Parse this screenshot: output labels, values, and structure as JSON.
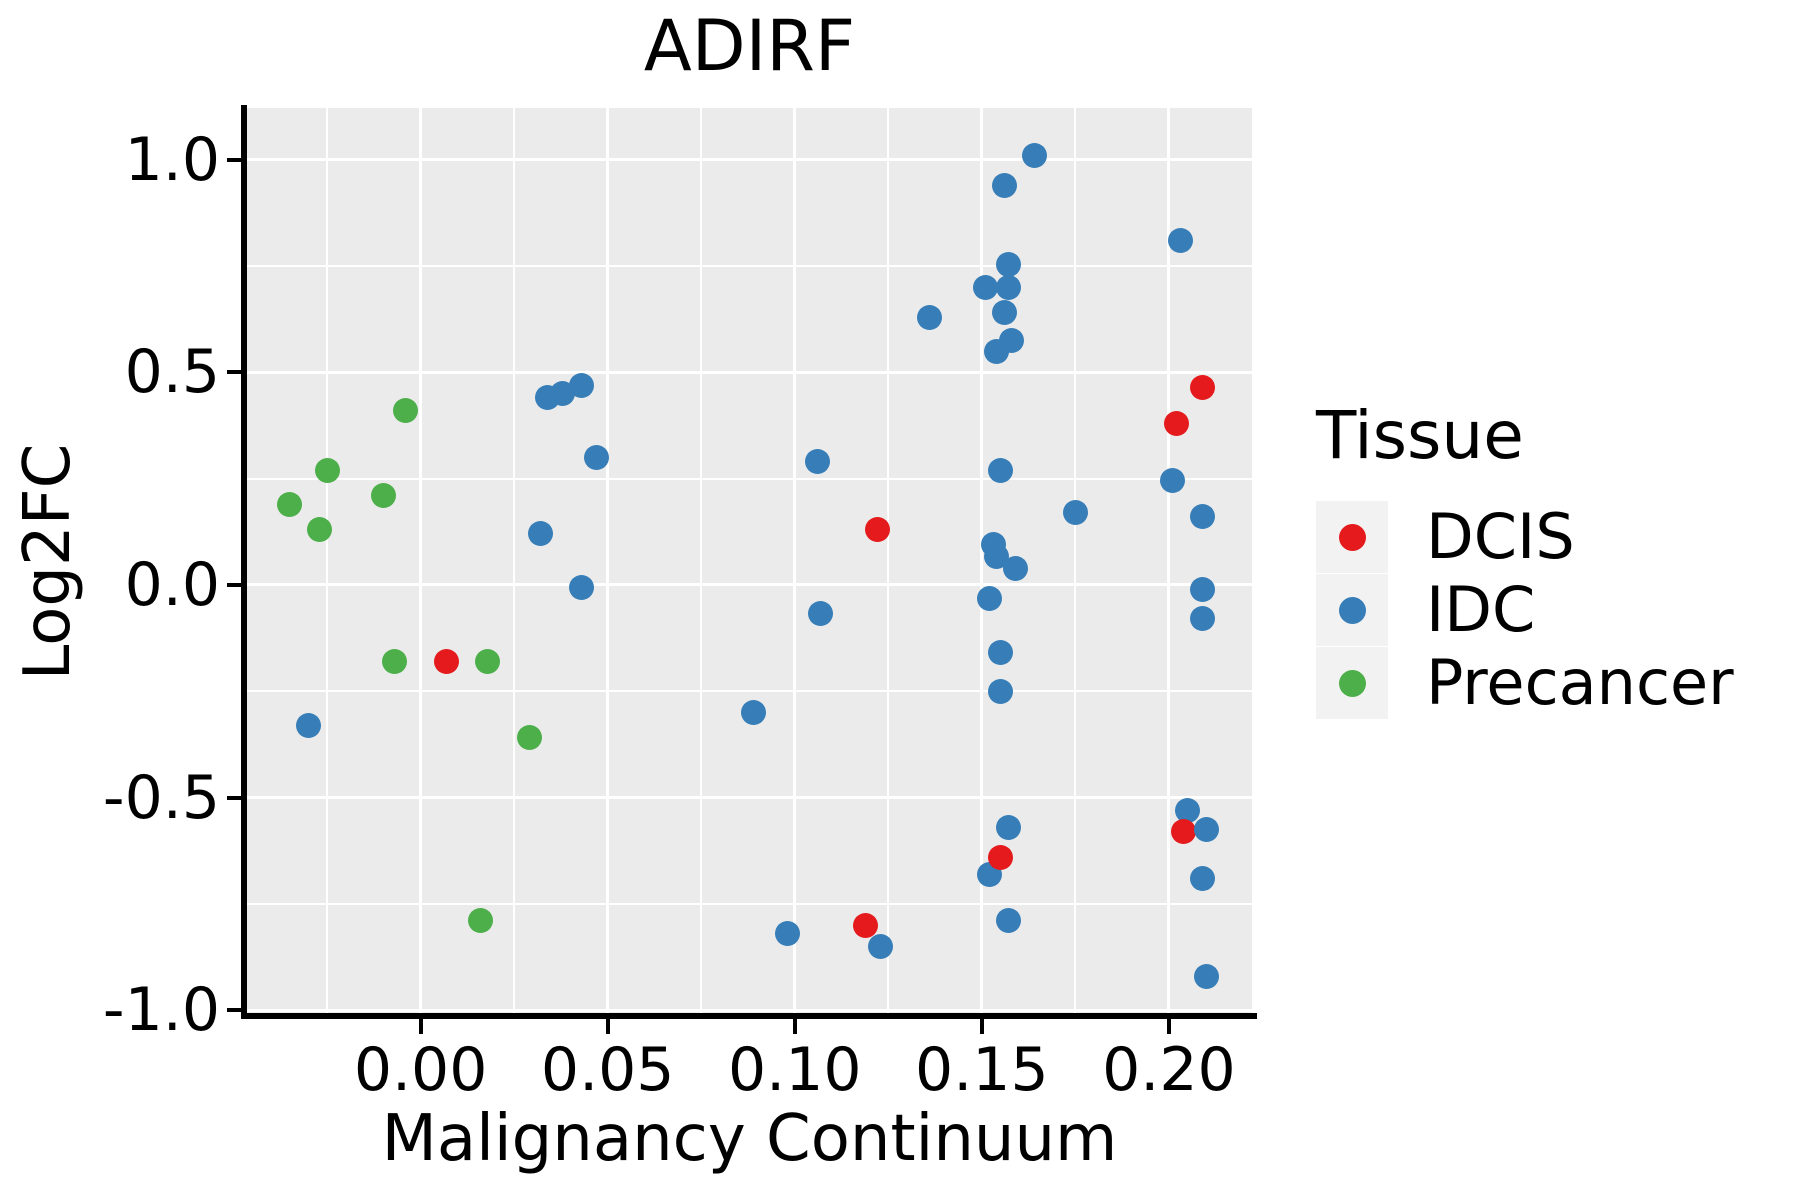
{
  "figure": {
    "title": "ADIRF",
    "x_axis_label": "Malignancy Continuum",
    "y_axis_label": "Log2FC"
  },
  "legend": {
    "title": "Tissue",
    "items": [
      {
        "label": "DCIS",
        "color": "#E41A1C"
      },
      {
        "label": "IDC",
        "color": "#377EB8"
      },
      {
        "label": "Precancer",
        "color": "#4DAF4A"
      }
    ]
  },
  "chart_data": {
    "type": "scatter",
    "title": "ADIRF",
    "xlabel": "Malignancy Continuum",
    "ylabel": "Log2FC",
    "x_domain": [
      -0.0464,
      0.2222
    ],
    "y_domain": [
      -1.014,
      1.122
    ],
    "x_major_ticks": {
      "values": [
        0.0,
        0.05,
        0.1,
        0.15,
        0.2
      ],
      "labels": [
        "0.00",
        "0.05",
        "0.10",
        "0.15",
        "0.20"
      ]
    },
    "x_minor_ticks": [
      -0.025,
      0.025,
      0.075,
      0.125,
      0.175
    ],
    "y_major_ticks": {
      "values": [
        1.0,
        0.5,
        0.0,
        -0.5,
        -1.0
      ],
      "labels": [
        "1.0",
        "0.5",
        "0.0",
        "-0.5",
        "-1.0"
      ]
    },
    "y_minor_ticks": [
      0.75,
      0.25,
      -0.25,
      -0.75
    ],
    "grid": true,
    "legend_position": "right",
    "panel_background": "#EBEBEB",
    "series_colors": {
      "DCIS": "#E41A1C",
      "IDC": "#377EB8",
      "Precancer": "#4DAF4A"
    },
    "points": [
      {
        "x": -0.03,
        "y": -0.33,
        "tissue": "IDC"
      },
      {
        "x": 0.032,
        "y": 0.12,
        "tissue": "IDC"
      },
      {
        "x": 0.034,
        "y": 0.44,
        "tissue": "IDC"
      },
      {
        "x": 0.038,
        "y": 0.45,
        "tissue": "IDC"
      },
      {
        "x": 0.043,
        "y": 0.47,
        "tissue": "IDC"
      },
      {
        "x": 0.047,
        "y": 0.3,
        "tissue": "IDC"
      },
      {
        "x": 0.043,
        "y": -0.005,
        "tissue": "IDC"
      },
      {
        "x": 0.089,
        "y": -0.3,
        "tissue": "IDC"
      },
      {
        "x": 0.098,
        "y": -0.82,
        "tissue": "IDC"
      },
      {
        "x": 0.106,
        "y": 0.29,
        "tissue": "IDC"
      },
      {
        "x": 0.107,
        "y": -0.066,
        "tissue": "IDC"
      },
      {
        "x": 0.136,
        "y": 0.63,
        "tissue": "IDC"
      },
      {
        "x": 0.156,
        "y": 0.94,
        "tissue": "IDC"
      },
      {
        "x": 0.164,
        "y": 1.01,
        "tissue": "IDC"
      },
      {
        "x": 0.151,
        "y": 0.7,
        "tissue": "IDC"
      },
      {
        "x": 0.157,
        "y": 0.755,
        "tissue": "IDC"
      },
      {
        "x": 0.157,
        "y": 0.7,
        "tissue": "IDC"
      },
      {
        "x": 0.156,
        "y": 0.64,
        "tissue": "IDC"
      },
      {
        "x": 0.154,
        "y": 0.55,
        "tissue": "IDC"
      },
      {
        "x": 0.158,
        "y": 0.575,
        "tissue": "IDC"
      },
      {
        "x": 0.155,
        "y": 0.27,
        "tissue": "IDC"
      },
      {
        "x": 0.175,
        "y": 0.17,
        "tissue": "IDC"
      },
      {
        "x": 0.153,
        "y": 0.095,
        "tissue": "IDC"
      },
      {
        "x": 0.154,
        "y": 0.066,
        "tissue": "IDC"
      },
      {
        "x": 0.159,
        "y": 0.038,
        "tissue": "IDC"
      },
      {
        "x": 0.152,
        "y": -0.031,
        "tissue": "IDC"
      },
      {
        "x": 0.155,
        "y": -0.16,
        "tissue": "IDC"
      },
      {
        "x": 0.155,
        "y": -0.25,
        "tissue": "IDC"
      },
      {
        "x": 0.157,
        "y": -0.57,
        "tissue": "IDC"
      },
      {
        "x": 0.152,
        "y": -0.68,
        "tissue": "IDC"
      },
      {
        "x": 0.157,
        "y": -0.79,
        "tissue": "IDC"
      },
      {
        "x": 0.203,
        "y": 0.81,
        "tissue": "IDC"
      },
      {
        "x": 0.201,
        "y": 0.245,
        "tissue": "IDC"
      },
      {
        "x": 0.209,
        "y": 0.16,
        "tissue": "IDC"
      },
      {
        "x": 0.209,
        "y": -0.01,
        "tissue": "IDC"
      },
      {
        "x": 0.209,
        "y": -0.08,
        "tissue": "IDC"
      },
      {
        "x": 0.205,
        "y": -0.53,
        "tissue": "IDC"
      },
      {
        "x": 0.209,
        "y": -0.69,
        "tissue": "IDC"
      },
      {
        "x": 0.21,
        "y": -0.92,
        "tissue": "IDC"
      },
      {
        "x": 0.007,
        "y": -0.18,
        "tissue": "DCIS"
      },
      {
        "x": 0.122,
        "y": 0.13,
        "tissue": "DCIS"
      },
      {
        "x": 0.119,
        "y": -0.8,
        "tissue": "DCIS"
      },
      {
        "x": 0.123,
        "y": -0.85,
        "tissue": "IDC"
      },
      {
        "x": 0.155,
        "y": -0.64,
        "tissue": "DCIS"
      },
      {
        "x": 0.202,
        "y": 0.38,
        "tissue": "DCIS"
      },
      {
        "x": 0.209,
        "y": 0.465,
        "tissue": "DCIS"
      },
      {
        "x": 0.204,
        "y": -0.58,
        "tissue": "DCIS"
      },
      {
        "x": 0.21,
        "y": -0.575,
        "tissue": "IDC"
      },
      {
        "x": -0.035,
        "y": 0.19,
        "tissue": "Precancer"
      },
      {
        "x": -0.027,
        "y": 0.13,
        "tissue": "Precancer"
      },
      {
        "x": -0.025,
        "y": 0.27,
        "tissue": "Precancer"
      },
      {
        "x": -0.01,
        "y": 0.21,
        "tissue": "Precancer"
      },
      {
        "x": -0.004,
        "y": 0.41,
        "tissue": "Precancer"
      },
      {
        "x": -0.007,
        "y": -0.18,
        "tissue": "Precancer"
      },
      {
        "x": 0.018,
        "y": -0.18,
        "tissue": "Precancer"
      },
      {
        "x": 0.029,
        "y": -0.36,
        "tissue": "Precancer"
      },
      {
        "x": 0.016,
        "y": -0.79,
        "tissue": "Precancer"
      }
    ]
  }
}
